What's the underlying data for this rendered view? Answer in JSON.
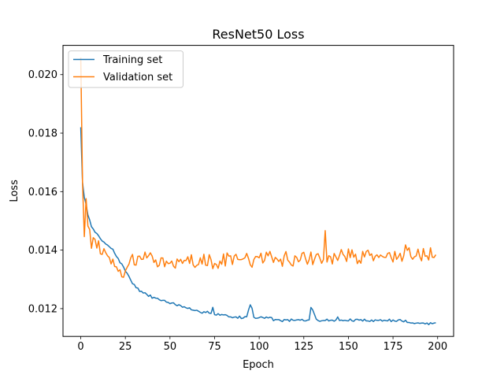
{
  "chart_data": {
    "type": "line",
    "title": "ResNet50 Loss",
    "xlabel": "Epoch",
    "ylabel": "Loss",
    "xlim": [
      -9.95,
      208.95
    ],
    "ylim": [
      0.01105,
      0.021
    ],
    "xticks": [
      0,
      25,
      50,
      75,
      100,
      125,
      150,
      175,
      200
    ],
    "yticks": [
      0.012,
      0.014,
      0.016,
      0.018,
      0.02
    ],
    "ytick_labels": [
      "0.012",
      "0.014",
      "0.016",
      "0.018",
      "0.020"
    ],
    "grid": false,
    "legend": "top-left",
    "series": [
      {
        "name": "Training set",
        "color": "#1f77b4",
        "keypoints": [
          [
            0,
            0.0182
          ],
          [
            1,
            0.0163
          ],
          [
            2,
            0.0158
          ],
          [
            3,
            0.0156
          ],
          [
            4,
            0.0152
          ],
          [
            5,
            0.015
          ],
          [
            6,
            0.0148
          ],
          [
            8,
            0.0146
          ],
          [
            10,
            0.0145
          ],
          [
            12,
            0.0143
          ],
          [
            15,
            0.0142
          ],
          [
            18,
            0.014
          ],
          [
            20,
            0.0138
          ],
          [
            22,
            0.0136
          ],
          [
            25,
            0.0133
          ],
          [
            28,
            0.013
          ],
          [
            30,
            0.0128
          ],
          [
            33,
            0.0126
          ],
          [
            36,
            0.0125
          ],
          [
            40,
            0.0124
          ],
          [
            45,
            0.0123
          ],
          [
            50,
            0.0122
          ],
          [
            55,
            0.0121
          ],
          [
            60,
            0.012
          ],
          [
            65,
            0.0119
          ],
          [
            70,
            0.0119
          ],
          [
            75,
            0.0118
          ],
          [
            80,
            0.0118
          ],
          [
            85,
            0.0117
          ],
          [
            90,
            0.0117
          ],
          [
            95,
            0.0117
          ],
          [
            100,
            0.0117
          ],
          [
            105,
            0.0117
          ],
          [
            110,
            0.0116
          ],
          [
            115,
            0.0116
          ],
          [
            120,
            0.0116
          ],
          [
            125,
            0.0116
          ],
          [
            130,
            0.0116
          ],
          [
            135,
            0.0116
          ],
          [
            140,
            0.0116
          ],
          [
            145,
            0.0116
          ],
          [
            150,
            0.0116
          ],
          [
            155,
            0.0116
          ],
          [
            160,
            0.0116
          ],
          [
            165,
            0.0116
          ],
          [
            170,
            0.0116
          ],
          [
            175,
            0.0116
          ],
          [
            180,
            0.0116
          ],
          [
            185,
            0.0115
          ],
          [
            190,
            0.0115
          ],
          [
            195,
            0.0115
          ],
          [
            199,
            0.0115
          ]
        ],
        "bumps": [
          [
            74,
            0.00025
          ],
          [
            94,
            0.00025
          ],
          [
            95,
            0.00045
          ],
          [
            96,
            0.0003
          ],
          [
            129,
            0.00045
          ],
          [
            130,
            0.00035
          ],
          [
            131,
            0.0002
          ],
          [
            144,
            0.00015
          ]
        ],
        "noise": 6e-05,
        "seed": 7
      },
      {
        "name": "Validation set",
        "color": "#ff7f0e",
        "keypoints": [
          [
            0,
            0.0206
          ],
          [
            1,
            0.0149
          ],
          [
            2,
            0.0145
          ],
          [
            3,
            0.0156
          ],
          [
            4,
            0.015
          ],
          [
            5,
            0.0146
          ],
          [
            6,
            0.0142
          ],
          [
            8,
            0.0143
          ],
          [
            10,
            0.0142
          ],
          [
            12,
            0.014
          ],
          [
            15,
            0.0138
          ],
          [
            18,
            0.0135
          ],
          [
            20,
            0.0133
          ],
          [
            25,
            0.0133
          ],
          [
            30,
            0.0136
          ],
          [
            40,
            0.0137
          ],
          [
            50,
            0.0136
          ],
          [
            60,
            0.0136
          ],
          [
            75,
            0.0136
          ],
          [
            90,
            0.0137
          ],
          [
            100,
            0.0137
          ],
          [
            125,
            0.0137
          ],
          [
            150,
            0.0138
          ],
          [
            175,
            0.0138
          ],
          [
            199,
            0.0138
          ]
        ],
        "bumps": [
          [
            1,
            0.0014
          ],
          [
            29,
            0.00035
          ],
          [
            80,
            0.0002
          ],
          [
            133,
            0.0003
          ],
          [
            137,
            0.00075
          ],
          [
            182,
            0.0005
          ],
          [
            192,
            0.0002
          ]
        ],
        "noise": 0.00032,
        "seed": 13
      }
    ]
  }
}
